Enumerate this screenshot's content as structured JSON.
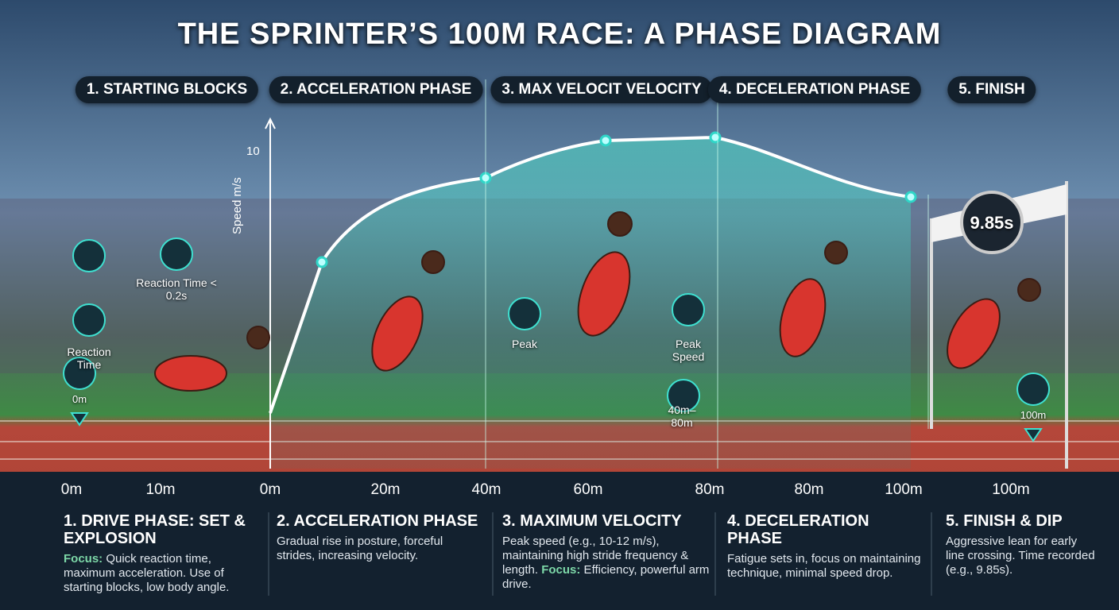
{
  "title": "THE SPRINTER’S 100M RACE: A PHASE DIAGRAM",
  "phases": [
    "1. STARTING BLOCKS",
    "2. ACCELERATION PHASE",
    "3. MAX VELOCIT VELOCITY",
    "4. DECELERATION PHASE",
    "5. FINISH"
  ],
  "axis": {
    "label": "Speed m/s",
    "tick": "10"
  },
  "distance_labels": [
    "0m",
    "10m",
    "0m",
    "20m",
    "40m",
    "60m",
    "80m",
    "80m",
    "100m",
    "100m"
  ],
  "callouts": [
    "Reaction Time < 0.2s",
    "Reaction Time",
    "0m",
    "Peak",
    "Peak Speed",
    "40m–80m",
    "9.85s",
    "100m"
  ],
  "sections": [
    {
      "heading": "1. DRIVE PHASE: SET & EXPLOSION",
      "body": [
        {
          "style": "focus",
          "text": "Focus:"
        },
        {
          "style": "plain",
          "text": " Quick reaction time, maximum acceleration. Use of starting blocks, low body angle."
        }
      ]
    },
    {
      "heading": "2. ACCELERATION PHASE",
      "body": [
        {
          "style": "plain",
          "text": "Gradual rise in posture, forceful strides, increasing velocity."
        }
      ]
    },
    {
      "heading": "3. MAXIMUM VELOCITY",
      "body": [
        {
          "style": "plain",
          "text": "Peak speed (e.g., 10-12 m/s), maintaining high stride frequency & length. "
        },
        {
          "style": "focus",
          "text": "Focus:"
        },
        {
          "style": "plain",
          "text": " Efficiency, powerful arm drive."
        }
      ]
    },
    {
      "heading": "4. DECELERATION PHASE",
      "body": [
        {
          "style": "plain",
          "text": "Fatigue sets in, focus on maintaining technique, minimal speed drop."
        }
      ]
    },
    {
      "heading": "5. FINISH & DIP",
      "body": [
        {
          "style": "plain",
          "text": "Aggressive lean for early line crossing. Time recorded (e.g., 9.85s)."
        }
      ]
    }
  ]
}
